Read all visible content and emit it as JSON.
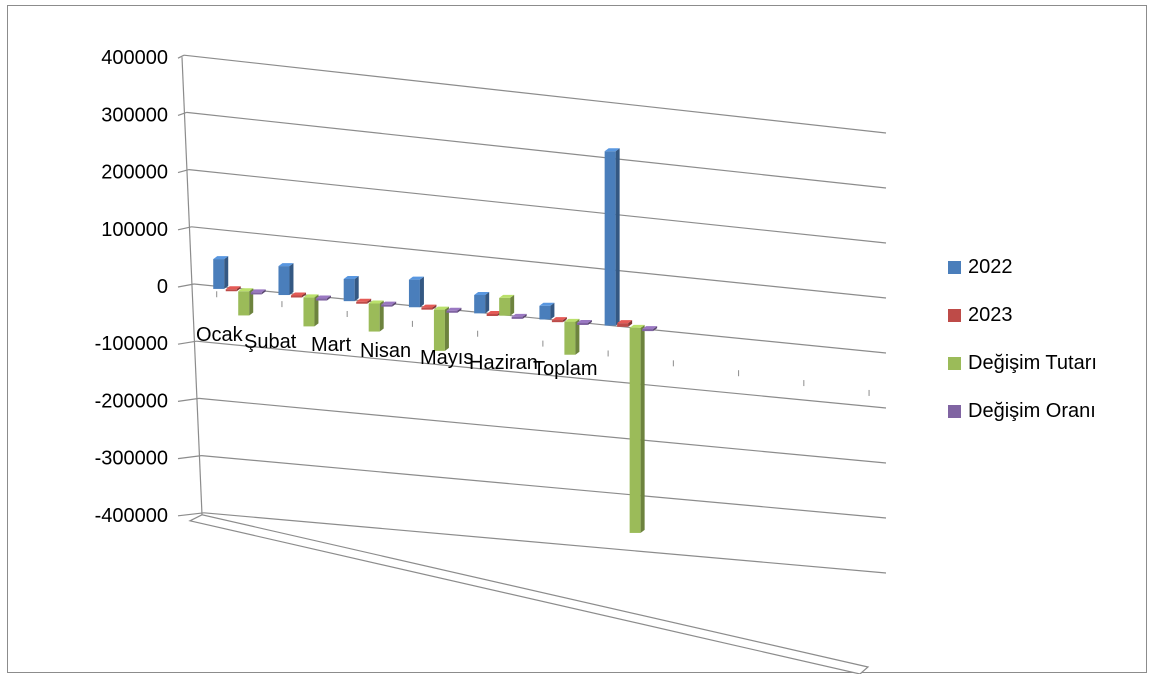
{
  "chart_data": {
    "type": "bar",
    "style": "3d-column",
    "categories": [
      "Ocak",
      "Şubat",
      "Mart",
      "Nisan",
      "Mayıs",
      "Haziran",
      "Toplam"
    ],
    "series": [
      {
        "name": "2022",
        "color": "#4a7ebb",
        "values": [
          52000,
          50000,
          38000,
          47000,
          31000,
          23000,
          290000
        ]
      },
      {
        "name": "2023",
        "color": "#be4b48",
        "values": [
          1500,
          1200,
          1000,
          1300,
          900,
          800,
          6000
        ]
      },
      {
        "name": "Değişim Tutarı",
        "color": "#9bbb59",
        "values": [
          -42000,
          -50000,
          -48000,
          -70000,
          30000,
          -55000,
          -340000
        ]
      },
      {
        "name": "Değişim Oranı",
        "color": "#8064a2",
        "values": [
          -2000,
          -2000,
          -2000,
          -2000,
          -2000,
          -2000,
          -2000
        ]
      }
    ],
    "y_ticks": [
      "400000",
      "300000",
      "200000",
      "100000",
      "0",
      "-100000",
      "-200000",
      "-300000",
      "-400000"
    ],
    "ylim": [
      -400000,
      400000
    ],
    "grid": true,
    "legend": "right"
  }
}
